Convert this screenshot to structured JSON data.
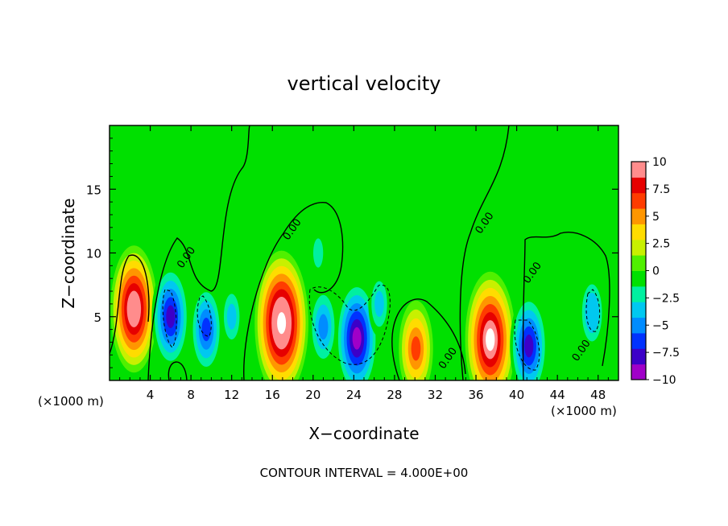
{
  "chart_data": {
    "type": "heatmap",
    "title": "vertical velocity",
    "xlabel": "X−coordinate",
    "ylabel": "Z−coordinate",
    "x_unit_label_left": "(×1000 m)",
    "x_unit_label_right": "(×1000 m)",
    "footer": "CONTOUR INTERVAL = 4.000E+00",
    "xlim": [
      0,
      50
    ],
    "ylim": [
      0,
      20
    ],
    "xticks": [
      4,
      8,
      12,
      16,
      20,
      24,
      28,
      32,
      36,
      40,
      44,
      48
    ],
    "yticks": [
      5,
      10,
      15
    ],
    "contour_labels": [
      {
        "text": "0.00",
        "x": 7.8,
        "y": 9.5
      },
      {
        "text": "0.00",
        "x": 18.2,
        "y": 11.7
      },
      {
        "text": "0.00",
        "x": 37.1,
        "y": 12.2
      },
      {
        "text": "0.00",
        "x": 41.8,
        "y": 8.3
      },
      {
        "text": "0.00",
        "x": 33.5,
        "y": 1.6
      },
      {
        "text": "0.00",
        "x": 46.6,
        "y": 2.2
      }
    ],
    "colorbar": {
      "ticks": [
        "10",
        "7.5",
        "5",
        "2.5",
        "0",
        "−2.5",
        "−5",
        "−7.5",
        "−10"
      ],
      "range": [
        -10,
        10
      ],
      "colors": [
        "#a000c8",
        "#3c00c8",
        "#0032ff",
        "#008cff",
        "#00c8f0",
        "#00f0a0",
        "#00e000",
        "#50f000",
        "#c8f000",
        "#ffdc00",
        "#ff9600",
        "#ff3c00",
        "#e60000",
        "#ff8c8c"
      ]
    },
    "cells": [
      {
        "x": 2.4,
        "z": 5.6,
        "w": 10
      },
      {
        "x": 6,
        "z": 5,
        "w": -7.5
      },
      {
        "x": 9.5,
        "z": 4,
        "w": -6
      },
      {
        "x": 12,
        "z": 5,
        "w": -3
      },
      {
        "x": 16.9,
        "z": 4.5,
        "w": 12
      },
      {
        "x": 21,
        "z": 4.2,
        "w": -5
      },
      {
        "x": 24.3,
        "z": 3.3,
        "w": -9
      },
      {
        "x": 26.5,
        "z": 6,
        "w": -3
      },
      {
        "x": 30.1,
        "z": 2.5,
        "w": 6.5
      },
      {
        "x": 37.4,
        "z": 3.2,
        "w": 11
      },
      {
        "x": 41.2,
        "z": 2.7,
        "w": -7.5
      },
      {
        "x": 47.4,
        "z": 5.3,
        "w": -4
      },
      {
        "x": 20.5,
        "z": 10,
        "w": -1.5
      },
      {
        "x": 35,
        "z": 12,
        "w": -1
      }
    ]
  }
}
